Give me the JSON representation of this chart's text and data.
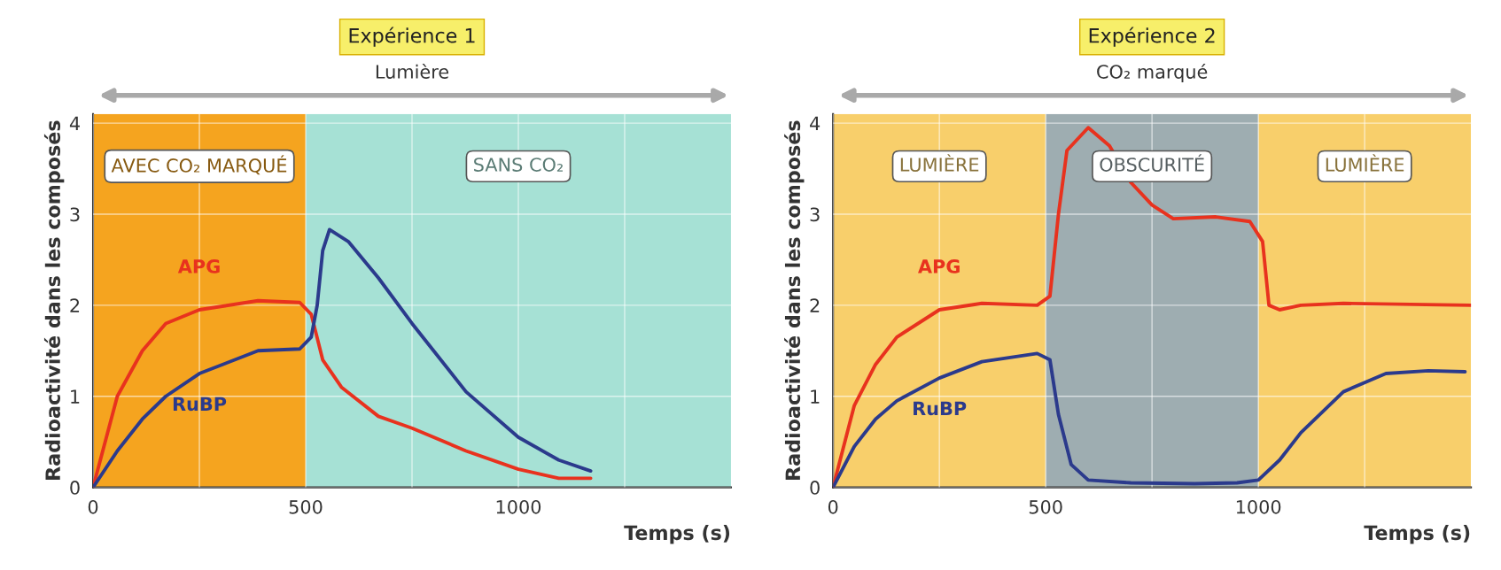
{
  "chart_data": [
    {
      "type": "line",
      "title": "Expérience 1",
      "subtitle": "Lumière",
      "xlabel": "Temps (s)",
      "ylabel": "Radioactivité dans les composés",
      "xlim": [
        0,
        1500
      ],
      "ylim": [
        0,
        4.1
      ],
      "xticks": [
        0,
        500,
        1000,
        {
          "value": 250,
          "label": null
        },
        {
          "value": 750,
          "label": null
        },
        {
          "value": 1250,
          "label": null
        }
      ],
      "yticks": [
        0,
        1,
        2,
        3,
        4
      ],
      "grid": true,
      "legend": false,
      "bands": [
        {
          "axis": "x",
          "from": 0,
          "to": 500,
          "label": "AVEC CO₂ MARQUÉ",
          "color": "#f5a41f"
        },
        {
          "axis": "x",
          "from": 500,
          "to": 1500,
          "label": "SANS CO₂",
          "color": "#a6e1d5"
        }
      ],
      "series": [
        {
          "name": "APG",
          "color": "#e8321e",
          "x": [
            0,
            57,
            116,
            171,
            250,
            388,
            486,
            513,
            540,
            584,
            671,
            750,
            877,
            1000,
            1095,
            1170
          ],
          "values": [
            0,
            1.0,
            1.5,
            1.8,
            1.95,
            2.05,
            2.03,
            1.9,
            1.4,
            1.1,
            0.78,
            0.65,
            0.4,
            0.2,
            0.1,
            0.1
          ]
        },
        {
          "name": "RuBP",
          "color": "#2b3a8c",
          "x": [
            0,
            57,
            116,
            171,
            250,
            388,
            486,
            513,
            527,
            540,
            556,
            600,
            671,
            750,
            877,
            1000,
            1095,
            1170
          ],
          "values": [
            0,
            0.4,
            0.75,
            1.0,
            1.25,
            1.5,
            1.52,
            1.65,
            2.0,
            2.6,
            2.83,
            2.7,
            2.3,
            1.8,
            1.05,
            0.55,
            0.3,
            0.18
          ]
        }
      ]
    },
    {
      "type": "line",
      "title": "Expérience 2",
      "subtitle": "CO₂ marqué",
      "xlabel": "Temps (s)",
      "ylabel": "Radioactivité dans les composés",
      "xlim": [
        0,
        1500
      ],
      "ylim": [
        0,
        4.1
      ],
      "xticks": [
        0,
        500,
        1000,
        {
          "value": 250,
          "label": null
        },
        {
          "value": 750,
          "label": null
        },
        {
          "value": 1250,
          "label": null
        }
      ],
      "yticks": [
        0,
        1,
        2,
        3,
        4
      ],
      "grid": true,
      "legend": false,
      "bands": [
        {
          "axis": "x",
          "from": 0,
          "to": 500,
          "label": "LUMIÈRE",
          "color": "#f8cf6b"
        },
        {
          "axis": "x",
          "from": 500,
          "to": 1000,
          "label": "OBSCURITÉ",
          "color": "#9eadb1"
        },
        {
          "axis": "x",
          "from": 1000,
          "to": 1500,
          "label": "LUMIÈRE",
          "color": "#f8cf6b"
        }
      ],
      "series": [
        {
          "name": "APG",
          "color": "#e8321e",
          "x": [
            0,
            50,
            100,
            150,
            250,
            350,
            480,
            510,
            530,
            550,
            600,
            650,
            700,
            750,
            800,
            900,
            980,
            1010,
            1025,
            1050,
            1100,
            1200,
            1500
          ],
          "values": [
            0,
            0.9,
            1.35,
            1.65,
            1.95,
            2.02,
            2.0,
            2.1,
            3.0,
            3.7,
            3.95,
            3.75,
            3.35,
            3.1,
            2.95,
            2.97,
            2.92,
            2.7,
            2.0,
            1.95,
            2.0,
            2.02,
            2.0
          ]
        },
        {
          "name": "RuBP",
          "color": "#2b3a8c",
          "x": [
            0,
            50,
            100,
            150,
            250,
            350,
            480,
            510,
            530,
            560,
            600,
            700,
            850,
            950,
            1000,
            1050,
            1100,
            1200,
            1300,
            1400,
            1486
          ],
          "values": [
            0,
            0.45,
            0.75,
            0.95,
            1.2,
            1.38,
            1.47,
            1.4,
            0.8,
            0.25,
            0.08,
            0.05,
            0.04,
            0.05,
            0.08,
            0.3,
            0.6,
            1.05,
            1.25,
            1.28,
            1.27
          ]
        }
      ]
    }
  ]
}
